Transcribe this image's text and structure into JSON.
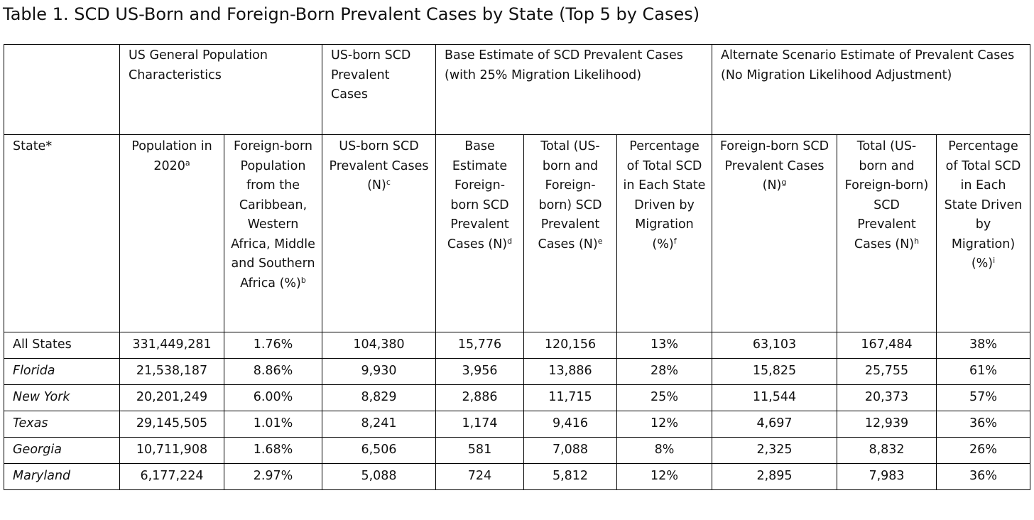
{
  "title": "Table 1. SCD US-Born and Foreign-Born Prevalent Cases by State (Top 5 by Cases)",
  "table": {
    "group_headers": [
      "US General Population Characteristics",
      "US-born SCD Prevalent Cases",
      "Base Estimate of SCD Prevalent Cases (with 25% Migration Likelihood)",
      "Alternate Scenario Estimate of Prevalent Cases (No Migration Likelihood Adjustment)"
    ],
    "columns": [
      {
        "label": "State*"
      },
      {
        "label": "Population in 2020",
        "note": "a"
      },
      {
        "label": "Foreign-born Population from the Caribbean, Western Africa, Middle and Southern Africa (%)",
        "note": "b"
      },
      {
        "label": "US-born SCD Prevalent Cases (N)",
        "note": "c"
      },
      {
        "label": "Base Estimate Foreign-born SCD Prevalent Cases (N)",
        "note": "d"
      },
      {
        "label": "Total (US-born and Foreign-born) SCD Prevalent Cases (N)",
        "note": "e"
      },
      {
        "label": "Percentage of Total SCD in Each State Driven by Migration (%)",
        "note": "f"
      },
      {
        "label": "Foreign-born SCD Prevalent Cases (N)",
        "note": "g"
      },
      {
        "label": "Total (US-born and Foreign-born) SCD Prevalent Cases (N)",
        "note": "h"
      },
      {
        "label": "Percentage of Total SCD in Each State Driven by Migration) (%)",
        "note": "i"
      }
    ],
    "rows": [
      [
        "All States",
        "331,449,281",
        "1.76%",
        "104,380",
        "15,776",
        "120,156",
        "13%",
        "63,103",
        "167,484",
        "38%"
      ],
      [
        "Florida",
        "21,538,187",
        "8.86%",
        "9,930",
        "3,956",
        "13,886",
        "28%",
        "15,825",
        "25,755",
        "61%"
      ],
      [
        "New York",
        "20,201,249",
        "6.00%",
        "8,829",
        "2,886",
        "11,715",
        "25%",
        "11,544",
        "20,373",
        "57%"
      ],
      [
        "Texas",
        "29,145,505",
        "1.01%",
        "8,241",
        "1,174",
        "9,416",
        "12%",
        "4,697",
        "12,939",
        "36%"
      ],
      [
        "Georgia",
        "10,711,908",
        "1.68%",
        "6,506",
        "581",
        "7,088",
        "8%",
        "2,325",
        "8,832",
        "26%"
      ],
      [
        "Maryland",
        "6,177,224",
        "2.97%",
        "5,088",
        "724",
        "5,812",
        "12%",
        "2,895",
        "7,983",
        "36%"
      ]
    ]
  }
}
